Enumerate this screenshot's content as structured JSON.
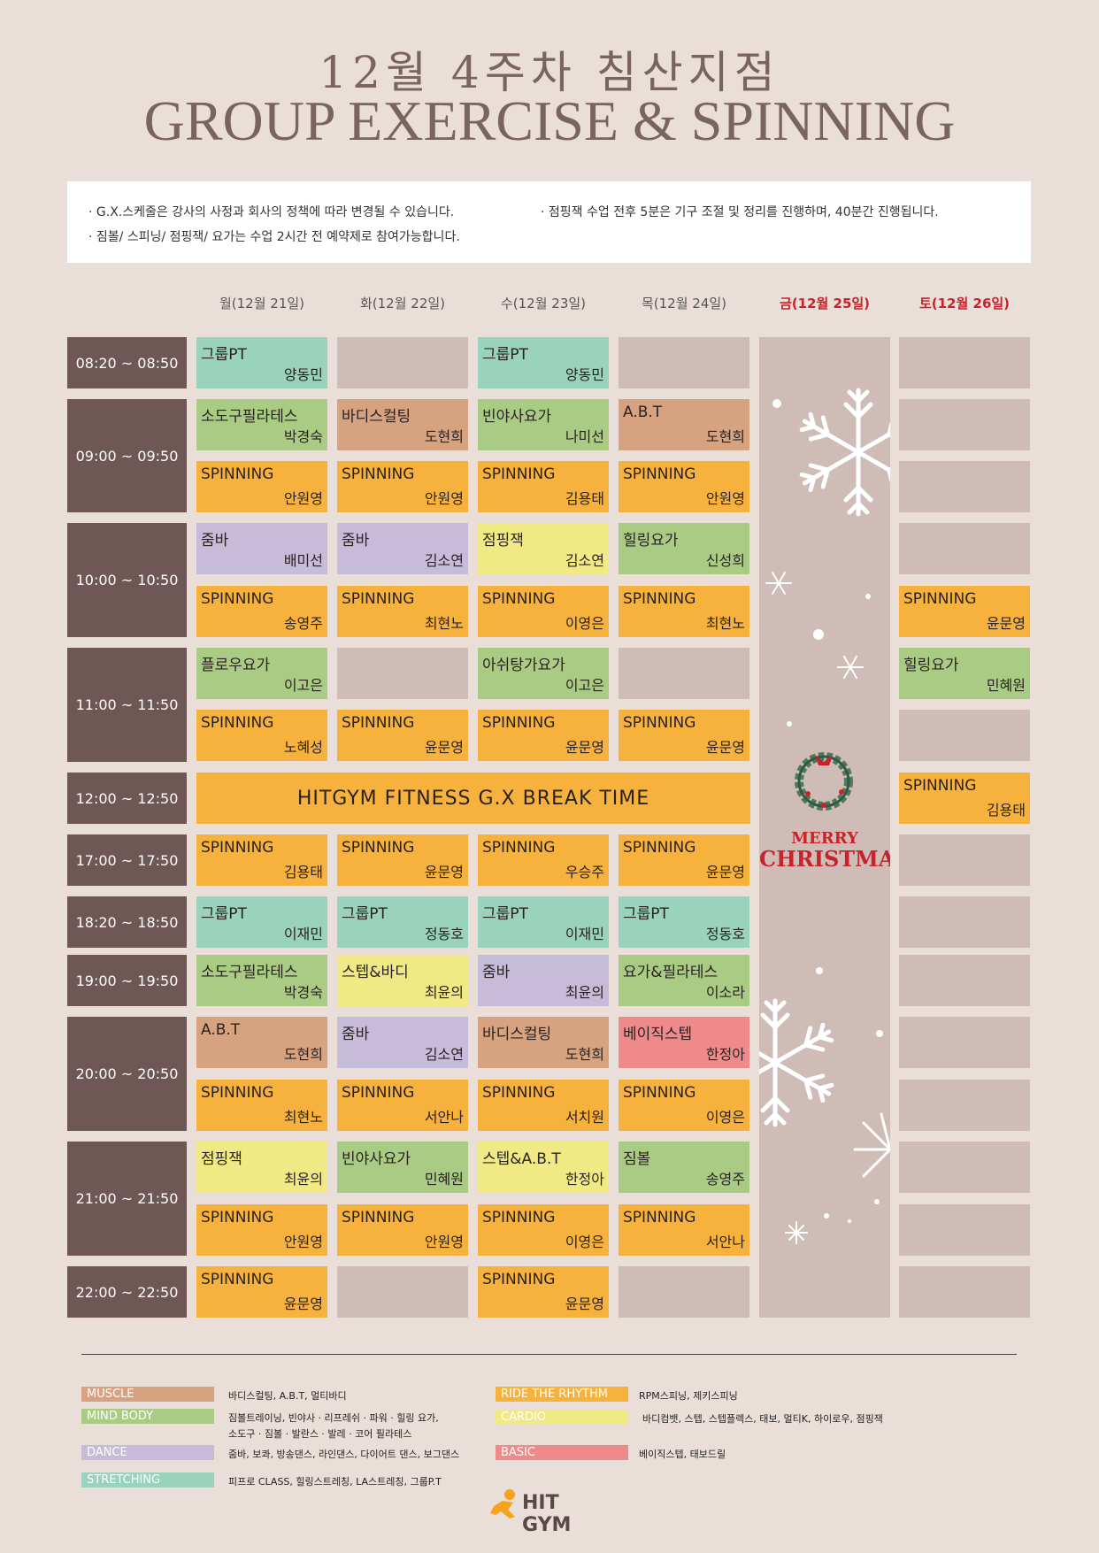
{
  "header": {
    "title": "12월 4주차 침산지점",
    "subtitle": "GROUP EXERCISE & SPINNING"
  },
  "notices": [
    "· G.X.스케줄은 강사의 사정과 회사의 정책에 따라 변경될 수 있습니다.",
    "· 점핑잭 수업 전후 5분은 기구 조절 및 정리를 진행하며, 40분간 진행됩니다.",
    "· 짐볼/ 스피닝/ 점핑잭/ 요가는 수업 2시간 전 예약제로 참여가능합니다."
  ],
  "days": [
    "월(12월 21일)",
    "화(12월 22일)",
    "수(12월 23일)",
    "목(12월 24일)",
    "금(12월 25일)",
    "토(12월 26일)"
  ],
  "times": [
    "08:20 ~ 08:50",
    "09:00 ~ 09:50",
    "10:00 ~ 10:50",
    "11:00 ~ 11:50",
    "12:00 ~ 12:50",
    "17:00 ~ 17:50",
    "18:20 ~ 18:50",
    "19:00 ~ 19:50",
    "20:00 ~ 20:50",
    "21:00 ~ 21:50",
    "22:00 ~ 22:50"
  ],
  "break_label": "HITGYM FITNESS G.X BREAK TIME",
  "holiday": {
    "line1": "MERRY",
    "line2": "CHRISTMAS"
  },
  "cells": [
    {
      "name": "그룹PT",
      "inst": "양동민",
      "cat": "stretch"
    },
    {
      "name": "",
      "inst": "",
      "cat": "empty"
    },
    {
      "name": "그룹PT",
      "inst": "양동민",
      "cat": "stretch"
    },
    {
      "name": "",
      "inst": "",
      "cat": "empty"
    },
    {
      "name": "",
      "inst": "",
      "cat": "empty"
    },
    {
      "name": "소도구필라테스",
      "inst": "박경숙",
      "cat": "mind"
    },
    {
      "name": "바디스컬팅",
      "inst": "도현희",
      "cat": "muscle"
    },
    {
      "name": "빈야사요가",
      "inst": "나미선",
      "cat": "mind"
    },
    {
      "name": "A.B.T",
      "inst": "도현희",
      "cat": "muscle"
    },
    {
      "name": "",
      "inst": "",
      "cat": "empty"
    },
    {
      "name": "SPINNING",
      "inst": "안원영",
      "cat": "spin"
    },
    {
      "name": "SPINNING",
      "inst": "안원영",
      "cat": "spin"
    },
    {
      "name": "SPINNING",
      "inst": "김용태",
      "cat": "spin"
    },
    {
      "name": "SPINNING",
      "inst": "안원영",
      "cat": "spin"
    },
    {
      "name": "",
      "inst": "",
      "cat": "empty"
    },
    {
      "name": "줌바",
      "inst": "배미선",
      "cat": "dance"
    },
    {
      "name": "줌바",
      "inst": "김소연",
      "cat": "dance"
    },
    {
      "name": "점핑잭",
      "inst": "김소연",
      "cat": "cardio"
    },
    {
      "name": "힐링요가",
      "inst": "신성희",
      "cat": "mind"
    },
    {
      "name": "",
      "inst": "",
      "cat": "empty"
    },
    {
      "name": "SPINNING",
      "inst": "송영주",
      "cat": "spin"
    },
    {
      "name": "SPINNING",
      "inst": "최현노",
      "cat": "spin"
    },
    {
      "name": "SPINNING",
      "inst": "이영은",
      "cat": "spin"
    },
    {
      "name": "SPINNING",
      "inst": "최현노",
      "cat": "spin"
    },
    {
      "name": "SPINNING",
      "inst": "윤문영",
      "cat": "spin"
    },
    {
      "name": "플로우요가",
      "inst": "이고은",
      "cat": "mind"
    },
    {
      "name": "",
      "inst": "",
      "cat": "empty"
    },
    {
      "name": "아쉬탕가요가",
      "inst": "이고은",
      "cat": "mind"
    },
    {
      "name": "",
      "inst": "",
      "cat": "empty"
    },
    {
      "name": "힐링요가",
      "inst": "민혜원",
      "cat": "mind"
    },
    {
      "name": "SPINNING",
      "inst": "노혜성",
      "cat": "spin"
    },
    {
      "name": "SPINNING",
      "inst": "윤문영",
      "cat": "spin"
    },
    {
      "name": "SPINNING",
      "inst": "윤문영",
      "cat": "spin"
    },
    {
      "name": "SPINNING",
      "inst": "윤문영",
      "cat": "spin"
    },
    {
      "name": "",
      "inst": "",
      "cat": "empty"
    },
    {
      "name": "SPINNING",
      "inst": "김용태",
      "cat": "spin"
    },
    {
      "name": "SPINNING",
      "inst": "김용태",
      "cat": "spin"
    },
    {
      "name": "SPINNING",
      "inst": "윤문영",
      "cat": "spin"
    },
    {
      "name": "SPINNING",
      "inst": "우승주",
      "cat": "spin"
    },
    {
      "name": "SPINNING",
      "inst": "윤문영",
      "cat": "spin"
    },
    {
      "name": "",
      "inst": "",
      "cat": "empty"
    },
    {
      "name": "그룹PT",
      "inst": "이재민",
      "cat": "stretch"
    },
    {
      "name": "그룹PT",
      "inst": "정동호",
      "cat": "stretch"
    },
    {
      "name": "그룹PT",
      "inst": "이재민",
      "cat": "stretch"
    },
    {
      "name": "그룹PT",
      "inst": "정동호",
      "cat": "stretch"
    },
    {
      "name": "",
      "inst": "",
      "cat": "empty"
    },
    {
      "name": "소도구필라테스",
      "inst": "박경숙",
      "cat": "mind"
    },
    {
      "name": "스텝&바디",
      "inst": "최윤의",
      "cat": "cardio"
    },
    {
      "name": "줌바",
      "inst": "최윤의",
      "cat": "dance"
    },
    {
      "name": "요가&필라테스",
      "inst": "이소라",
      "cat": "mind"
    },
    {
      "name": "",
      "inst": "",
      "cat": "empty"
    },
    {
      "name": "A.B.T",
      "inst": "도현희",
      "cat": "muscle"
    },
    {
      "name": "줌바",
      "inst": "김소연",
      "cat": "dance"
    },
    {
      "name": "바디스컬팅",
      "inst": "도현희",
      "cat": "muscle"
    },
    {
      "name": "베이직스텝",
      "inst": "한정아",
      "cat": "basic"
    },
    {
      "name": "",
      "inst": "",
      "cat": "empty"
    },
    {
      "name": "SPINNING",
      "inst": "최현노",
      "cat": "spin"
    },
    {
      "name": "SPINNING",
      "inst": "서안나",
      "cat": "spin"
    },
    {
      "name": "SPINNING",
      "inst": "서치원",
      "cat": "spin"
    },
    {
      "name": "SPINNING",
      "inst": "이영은",
      "cat": "spin"
    },
    {
      "name": "",
      "inst": "",
      "cat": "empty"
    },
    {
      "name": "점핑잭",
      "inst": "최윤의",
      "cat": "cardio"
    },
    {
      "name": "빈야사요가",
      "inst": "민혜원",
      "cat": "mind"
    },
    {
      "name": "스텝&A.B.T",
      "inst": "한정아",
      "cat": "cardio"
    },
    {
      "name": "짐볼",
      "inst": "송영주",
      "cat": "mind"
    },
    {
      "name": "",
      "inst": "",
      "cat": "empty"
    },
    {
      "name": "SPINNING",
      "inst": "안원영",
      "cat": "spin"
    },
    {
      "name": "SPINNING",
      "inst": "안원영",
      "cat": "spin"
    },
    {
      "name": "SPINNING",
      "inst": "이영은",
      "cat": "spin"
    },
    {
      "name": "SPINNING",
      "inst": "서안나",
      "cat": "spin"
    },
    {
      "name": "",
      "inst": "",
      "cat": "empty"
    },
    {
      "name": "SPINNING",
      "inst": "윤문영",
      "cat": "spin"
    },
    {
      "name": "",
      "inst": "",
      "cat": "empty"
    },
    {
      "name": "SPINNING",
      "inst": "윤문영",
      "cat": "spin"
    },
    {
      "name": "",
      "inst": "",
      "cat": "empty"
    },
    {
      "name": "",
      "inst": "",
      "cat": "empty"
    }
  ],
  "legend": [
    {
      "label": "MUSCLE",
      "color": "#d7a27f",
      "desc": "바디스컬팅, A.B.T, 멀티바디"
    },
    {
      "label": "MIND BODY",
      "color": "#a9cb84",
      "desc": "짐볼트레이닝, 빈야사 · 리프레쉬 · 파워 · 힐링 요가,",
      "desc2": "소도구 · 짐볼 · 발란스 · 발레 · 코어 필라테스"
    },
    {
      "label": "DANCE",
      "color": "#c6bcd9",
      "desc": "줌바, 보콰, 방송댄스, 라인댄스, 다이어트 댄스, 보그댄스"
    },
    {
      "label": "STRETCHING",
      "color": "#99d2bd",
      "desc": "피프로 CLASS, 힐링스트레칭, LA스트레칭, 그룹P.T"
    },
    {
      "label": "RIDE THE RHYTHM",
      "color": "#f6b23c",
      "desc": "RPM스피닝, 제키스피닝"
    },
    {
      "label": "CARDIO",
      "color": "#f1ea84",
      "desc": "바디컴뱃, 스텝, 스텝플렉스, 태보, 멀티K, 하이로우, 점핑잭"
    },
    {
      "label": "BASIC",
      "color": "#ee8b8a",
      "desc": "베이직스텝, 태보드릴"
    }
  ],
  "logo": {
    "text": "HIT GYM"
  },
  "colors": {
    "time_bg": "#6f5755",
    "empty": "#cfbcb7",
    "spin": "#f6b23c",
    "holiday_red": "#c8222a"
  }
}
